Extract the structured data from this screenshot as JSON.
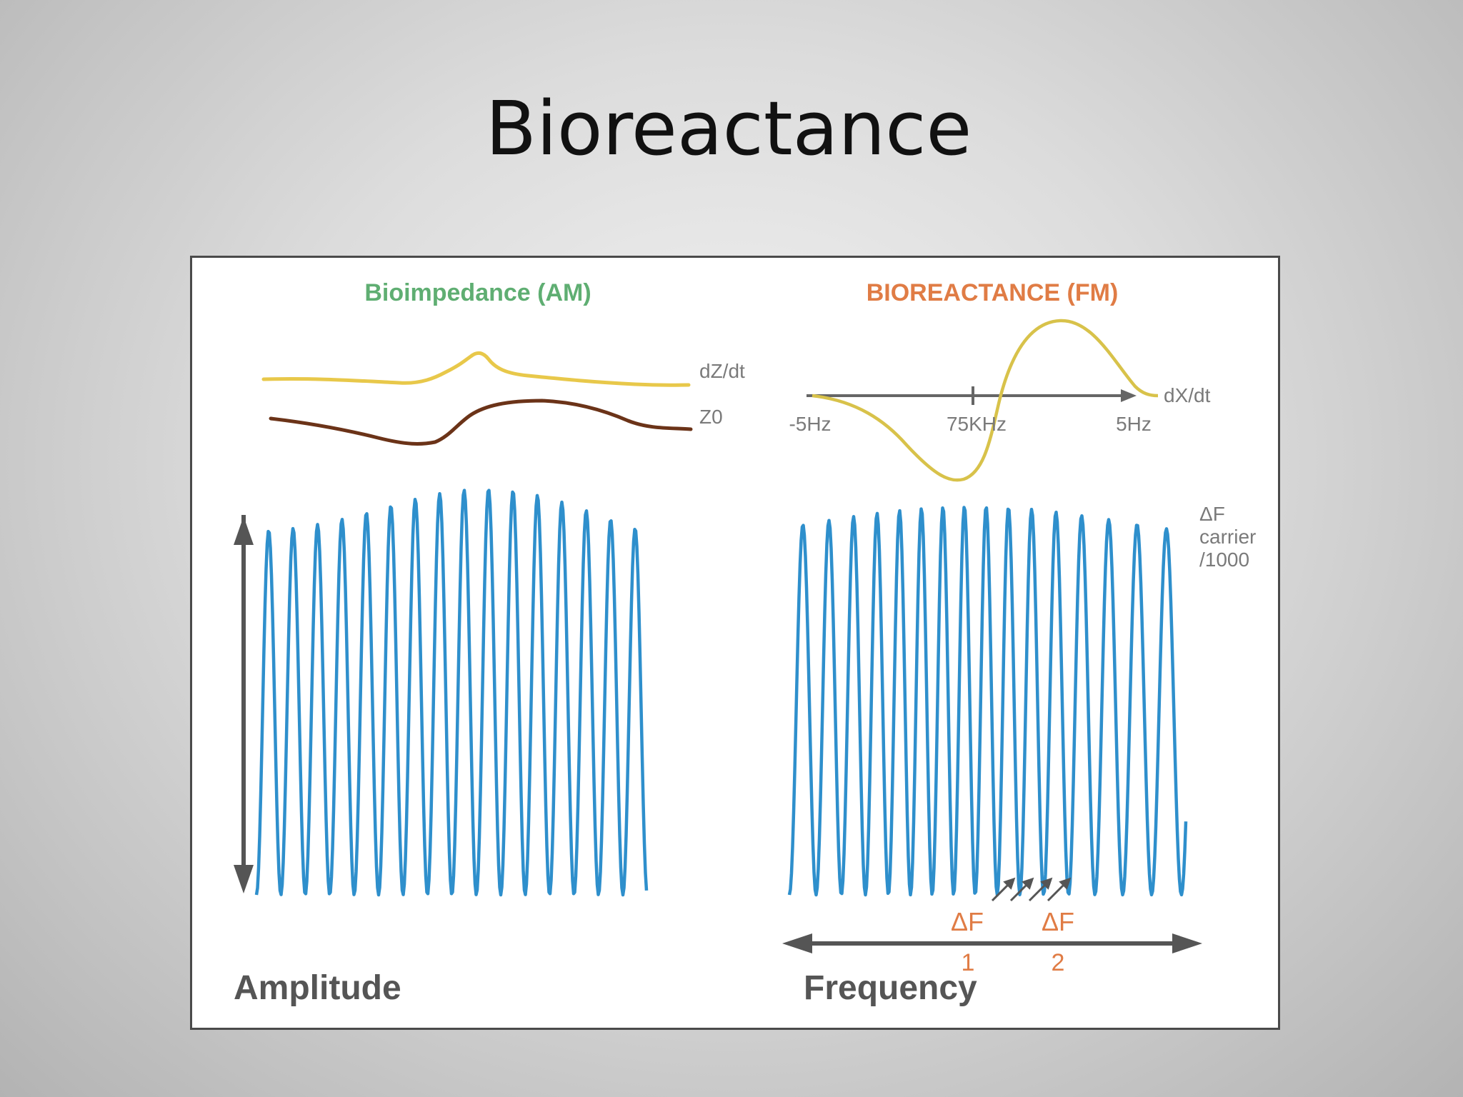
{
  "slide": {
    "title": "Bioreactance"
  },
  "figure": {
    "left_panel": {
      "title": "Bioimpedance (AM)",
      "title_color": "#5fae72",
      "trace_labels": {
        "top": "dZ/dt",
        "bottom": "Z0"
      },
      "trace_colors": {
        "top": "#e8c84a",
        "bottom": "#6b3318"
      },
      "caption": "Amplitude"
    },
    "right_panel": {
      "title": "BIOREACTANCE (FM)",
      "title_color": "#e07c45",
      "axis_label": "dX/dt",
      "axis_ticks": [
        "-5Hz",
        "75KHz",
        "5Hz"
      ],
      "trace_color": "#d8c24a",
      "side_label": [
        "ΔF",
        "carrier",
        "/1000"
      ],
      "delta_labels": [
        {
          "symbol": "ΔF",
          "index": "1"
        },
        {
          "symbol": "ΔF",
          "index": "2"
        }
      ],
      "caption": "Frequency"
    },
    "colors": {
      "wave": "#2e8fcc",
      "arrow": "#555555",
      "caption": "#555555",
      "label_gray": "#7a7a7a",
      "delta": "#e07c45"
    }
  }
}
